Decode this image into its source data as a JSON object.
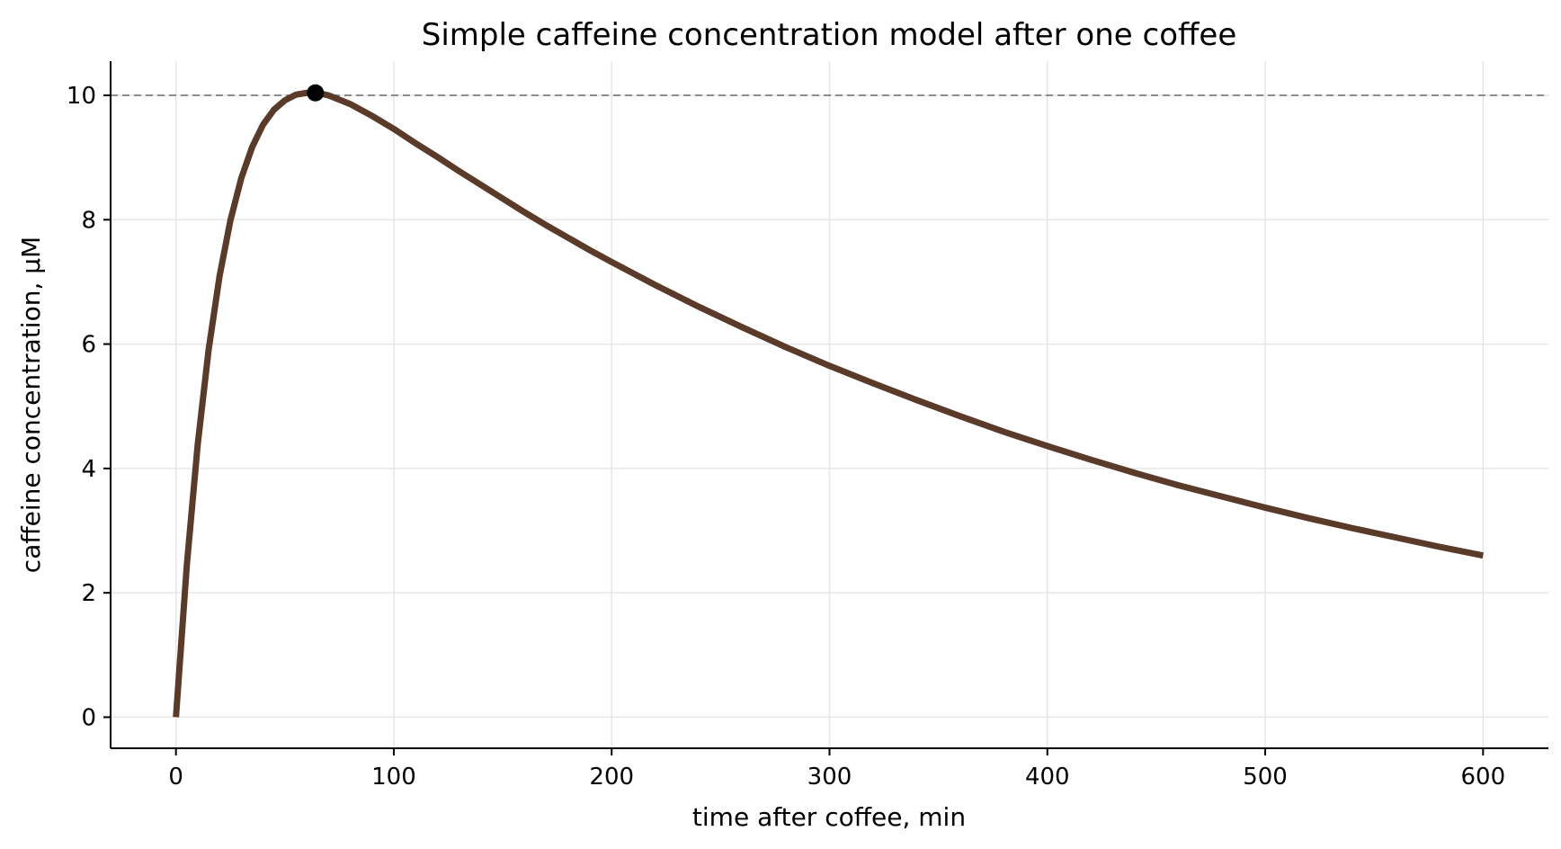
{
  "chart_data": {
    "type": "line",
    "title": "Simple caffeine concentration model after one coffee",
    "xlabel": "time after coffee, min",
    "ylabel": "caffeine concentration, µM",
    "xlim": [
      -30,
      630
    ],
    "ylim": [
      -0.5,
      10.55
    ],
    "xticks": [
      0,
      100,
      200,
      300,
      400,
      500,
      600
    ],
    "yticks": [
      0,
      2,
      4,
      6,
      8,
      10
    ],
    "grid": true,
    "series": [
      {
        "color": "#5a3a29",
        "x": [
          0,
          5,
          10,
          15,
          20,
          25,
          30,
          35,
          40,
          45,
          50,
          55,
          60,
          65,
          70,
          80,
          90,
          100,
          110,
          120,
          130,
          140,
          150,
          160,
          170,
          180,
          190,
          200,
          220,
          240,
          260,
          280,
          300,
          320,
          340,
          360,
          380,
          400,
          420,
          440,
          460,
          480,
          500,
          520,
          540,
          560,
          580,
          600
        ],
        "y": [
          0,
          2.45,
          4.39,
          5.91,
          7.09,
          7.99,
          8.67,
          9.17,
          9.53,
          9.77,
          9.92,
          10.01,
          10.04,
          10.04,
          10.0,
          9.86,
          9.67,
          9.46,
          9.23,
          9.01,
          8.78,
          8.56,
          8.34,
          8.12,
          7.91,
          7.71,
          7.51,
          7.32,
          6.95,
          6.6,
          6.27,
          5.95,
          5.65,
          5.37,
          5.1,
          4.84,
          4.59,
          4.36,
          4.14,
          3.93,
          3.73,
          3.55,
          3.37,
          3.2,
          3.04,
          2.89,
          2.74,
          2.6
        ]
      }
    ],
    "peak": {
      "x": 64,
      "y": 10.04,
      "color": "#000000"
    },
    "reference_line": {
      "y": 10,
      "color": "#8c8c8c",
      "style": "dashed"
    }
  }
}
